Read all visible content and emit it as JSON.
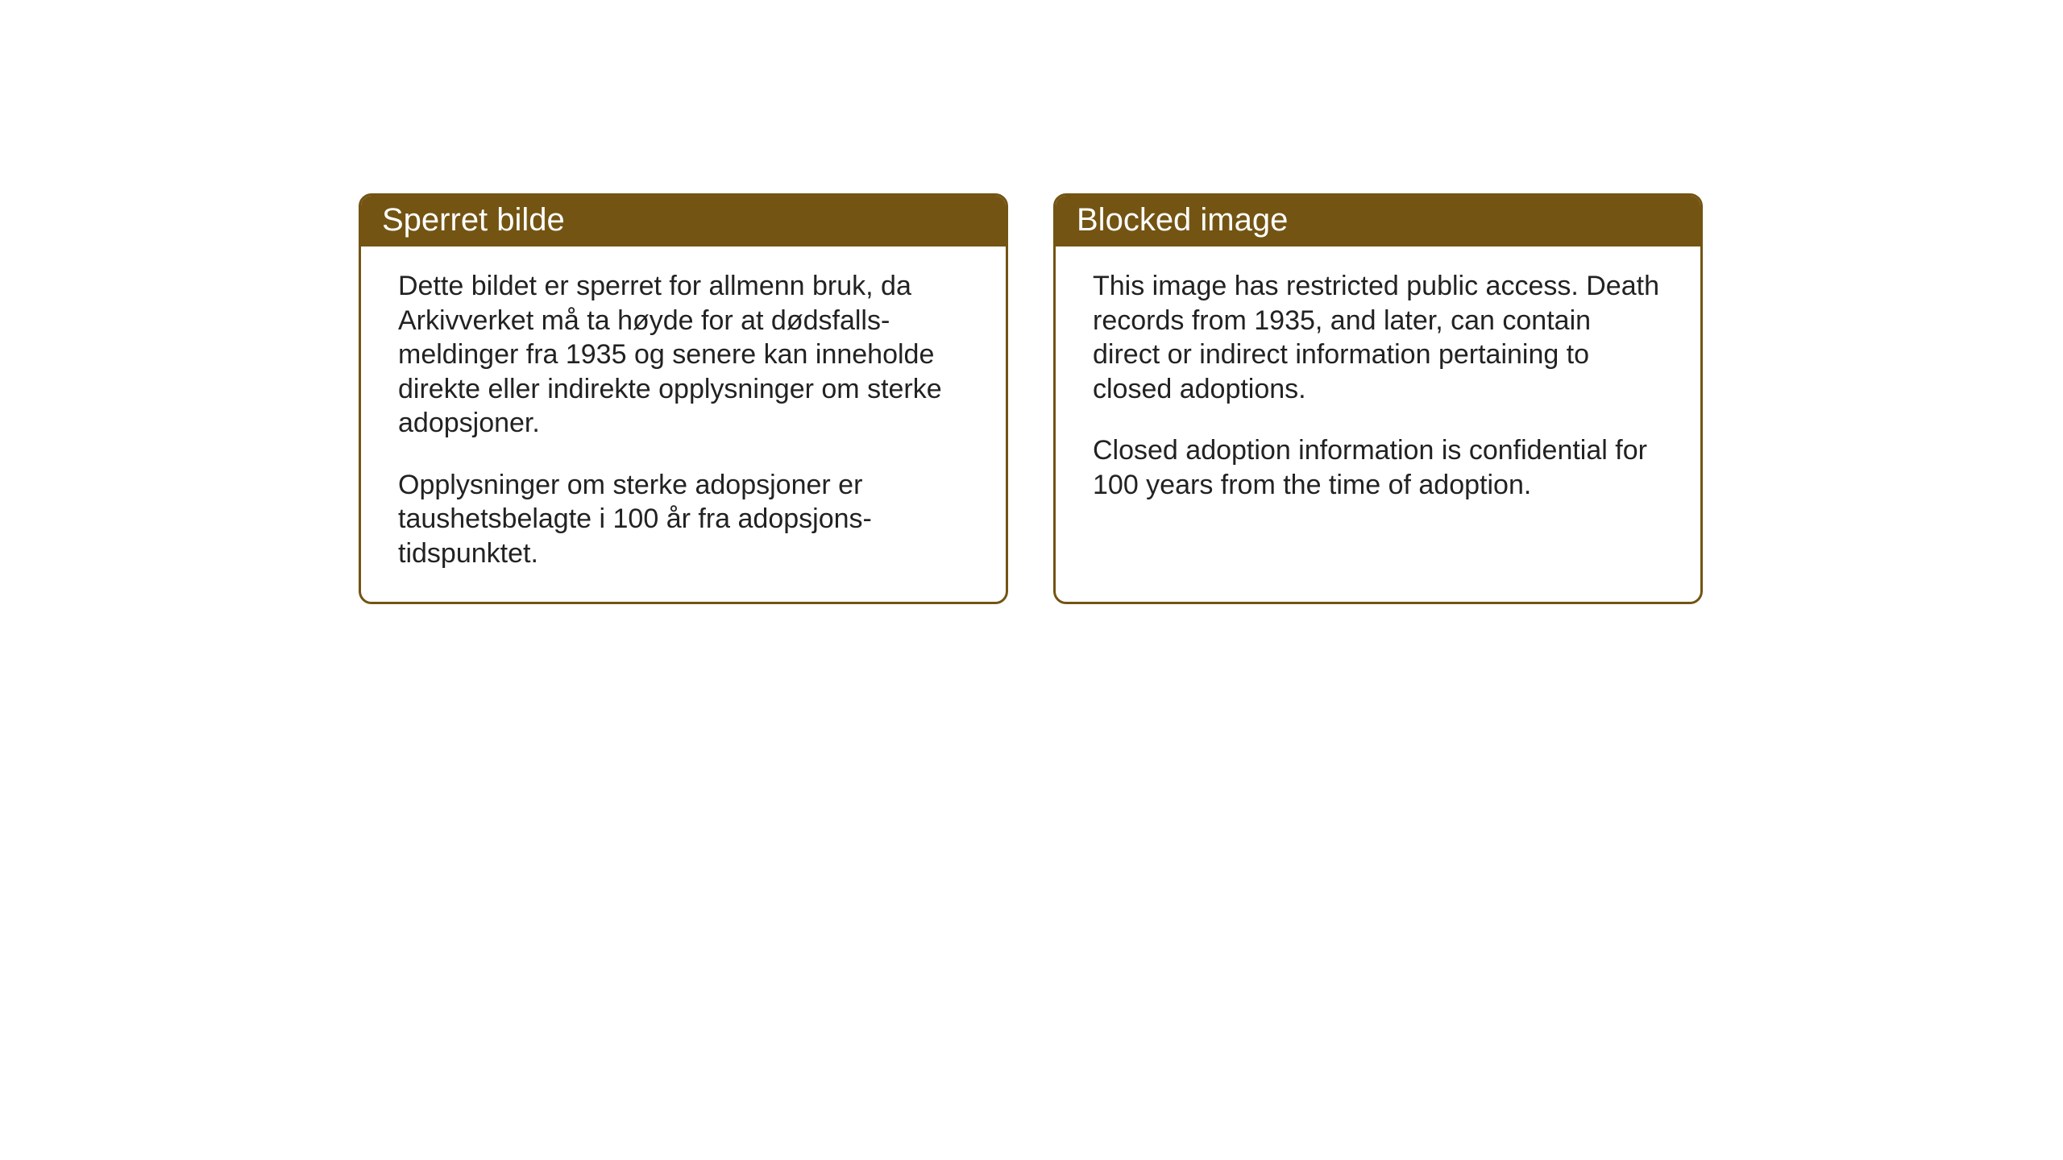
{
  "cards": {
    "norwegian": {
      "title": "Sperret bilde",
      "paragraph1": "Dette bildet er sperret for allmenn bruk, da Arkivverket må ta høyde for at dødsfalls-meldinger fra 1935 og senere kan inneholde direkte eller indirekte opplysninger om sterke adopsjoner.",
      "paragraph2": "Opplysninger om sterke adopsjoner er taushetsbelagte i 100 år fra adopsjons-tidspunktet."
    },
    "english": {
      "title": "Blocked image",
      "paragraph1": "This image has restricted public access. Death records from 1935, and later, can contain direct or indirect information pertaining to closed adoptions.",
      "paragraph2": "Closed adoption information is confidential for 100 years from the time of adoption."
    }
  },
  "styling": {
    "header_bg_color": "#735413",
    "header_text_color": "#ffffff",
    "border_color": "#735413",
    "body_text_color": "#222222",
    "background_color": "#ffffff",
    "title_fontsize": 40,
    "body_fontsize": 34,
    "border_radius": 16,
    "border_width": 3
  }
}
